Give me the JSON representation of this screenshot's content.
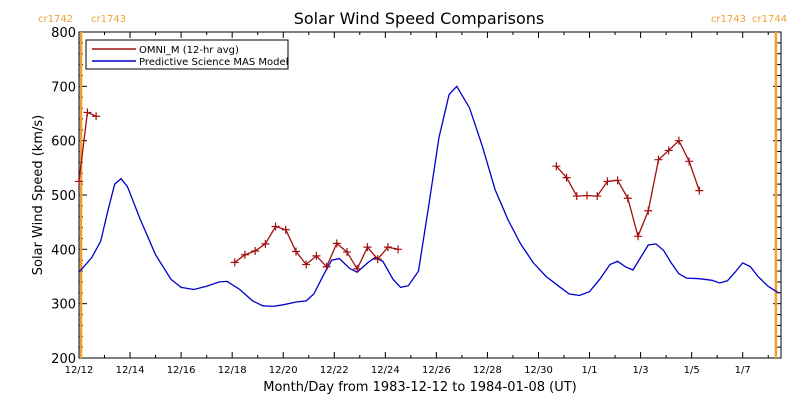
{
  "chart_data": {
    "type": "line",
    "title": "Solar Wind Speed Comparisons",
    "xlabel": "Month/Day from 1983-12-12 to 1984-01-08 (UT)",
    "ylabel": "Solar Wind Speed (km/s)",
    "xlim": [
      0,
      27.5
    ],
    "ylim": [
      200,
      800
    ],
    "y_ticks": [
      200,
      300,
      400,
      500,
      600,
      700,
      800
    ],
    "x_ticks": [
      {
        "x": 0,
        "label": "12/12"
      },
      {
        "x": 2,
        "label": "12/14"
      },
      {
        "x": 4,
        "label": "12/16"
      },
      {
        "x": 6,
        "label": "12/18"
      },
      {
        "x": 8,
        "label": "12/20"
      },
      {
        "x": 10,
        "label": "12/22"
      },
      {
        "x": 12,
        "label": "12/24"
      },
      {
        "x": 14,
        "label": "12/26"
      },
      {
        "x": 16,
        "label": "12/28"
      },
      {
        "x": 18,
        "label": "12/30"
      },
      {
        "x": 20,
        "label": "1/1"
      },
      {
        "x": 22,
        "label": "1/3"
      },
      {
        "x": 24,
        "label": "1/5"
      },
      {
        "x": 26,
        "label": "1/7"
      }
    ],
    "carrington_markers": [
      {
        "x": 0.08,
        "left_label": "cr1742",
        "right_label": "cr1743",
        "side": "left"
      },
      {
        "x": 27.3,
        "left_label": "cr1743",
        "right_label": "cr1744",
        "side": "right"
      }
    ],
    "legend_position": "top-left",
    "series": [
      {
        "name": "OMNI_M (12-hr avg)",
        "color": "#a01010",
        "marker": "plus",
        "segments": [
          [
            [
              0,
              525
            ],
            [
              0.33,
              652
            ],
            [
              0.67,
              645
            ]
          ],
          [
            [
              6.1,
              376
            ],
            [
              6.5,
              390
            ],
            [
              6.9,
              397
            ],
            [
              7.3,
              410
            ],
            [
              7.7,
              442
            ],
            [
              8.1,
              436
            ],
            [
              8.5,
              396
            ],
            [
              8.9,
              372
            ],
            [
              9.3,
              388
            ],
            [
              9.7,
              368
            ],
            [
              10.1,
              411
            ],
            [
              10.5,
              395
            ],
            [
              10.9,
              364
            ],
            [
              11.3,
              404
            ],
            [
              11.7,
              382
            ],
            [
              12.1,
              404
            ],
            [
              12.5,
              400
            ]
          ],
          [
            [
              18.7,
              553
            ],
            [
              19.1,
              532
            ],
            [
              19.5,
              498
            ],
            [
              19.9,
              499
            ],
            [
              20.3,
              498
            ],
            [
              20.7,
              525
            ],
            [
              21.1,
              527
            ],
            [
              21.5,
              494
            ],
            [
              21.9,
              424
            ],
            [
              22.3,
              471
            ],
            [
              22.7,
              565
            ],
            [
              23.1,
              582
            ],
            [
              23.5,
              600
            ],
            [
              23.9,
              562
            ],
            [
              24.3,
              508
            ]
          ]
        ]
      },
      {
        "name": "Predictive Science MAS Model",
        "color": "#0000cc",
        "marker": "none",
        "segments": [
          [
            [
              0,
              358
            ],
            [
              0.5,
              385
            ],
            [
              0.85,
              415
            ],
            [
              1.15,
              475
            ],
            [
              1.4,
              520
            ],
            [
              1.65,
              530
            ],
            [
              1.9,
              515
            ],
            [
              2.4,
              455
            ],
            [
              3.0,
              390
            ],
            [
              3.6,
              345
            ],
            [
              4.0,
              330
            ],
            [
              4.5,
              326
            ],
            [
              5.0,
              332
            ],
            [
              5.5,
              340
            ],
            [
              5.8,
              341
            ],
            [
              6.3,
              326
            ],
            [
              6.8,
              305
            ],
            [
              7.2,
              296
            ],
            [
              7.6,
              295
            ],
            [
              8.0,
              298
            ],
            [
              8.5,
              303
            ],
            [
              8.9,
              305
            ],
            [
              9.2,
              318
            ],
            [
              9.6,
              355
            ],
            [
              9.9,
              380
            ],
            [
              10.2,
              383
            ],
            [
              10.6,
              365
            ],
            [
              10.9,
              358
            ],
            [
              11.3,
              375
            ],
            [
              11.6,
              385
            ],
            [
              11.9,
              378
            ],
            [
              12.3,
              345
            ],
            [
              12.6,
              330
            ],
            [
              12.9,
              333
            ],
            [
              13.3,
              360
            ],
            [
              13.7,
              480
            ],
            [
              14.1,
              605
            ],
            [
              14.5,
              685
            ],
            [
              14.8,
              700
            ],
            [
              15.3,
              660
            ],
            [
              15.8,
              590
            ],
            [
              16.3,
              510
            ],
            [
              16.8,
              455
            ],
            [
              17.3,
              410
            ],
            [
              17.8,
              375
            ],
            [
              18.3,
              350
            ],
            [
              18.8,
              332
            ],
            [
              19.2,
              318
            ],
            [
              19.6,
              315
            ],
            [
              20.0,
              322
            ],
            [
              20.4,
              345
            ],
            [
              20.8,
              372
            ],
            [
              21.1,
              378
            ],
            [
              21.4,
              368
            ],
            [
              21.7,
              362
            ],
            [
              22.0,
              385
            ],
            [
              22.3,
              408
            ],
            [
              22.6,
              410
            ],
            [
              22.9,
              398
            ],
            [
              23.2,
              375
            ],
            [
              23.5,
              355
            ],
            [
              23.8,
              347
            ],
            [
              24.3,
              346
            ],
            [
              24.8,
              343
            ],
            [
              25.1,
              338
            ],
            [
              25.4,
              342
            ],
            [
              25.7,
              358
            ],
            [
              26.0,
              375
            ],
            [
              26.3,
              368
            ],
            [
              26.6,
              350
            ],
            [
              27.0,
              332
            ],
            [
              27.4,
              320
            ]
          ]
        ]
      }
    ]
  }
}
